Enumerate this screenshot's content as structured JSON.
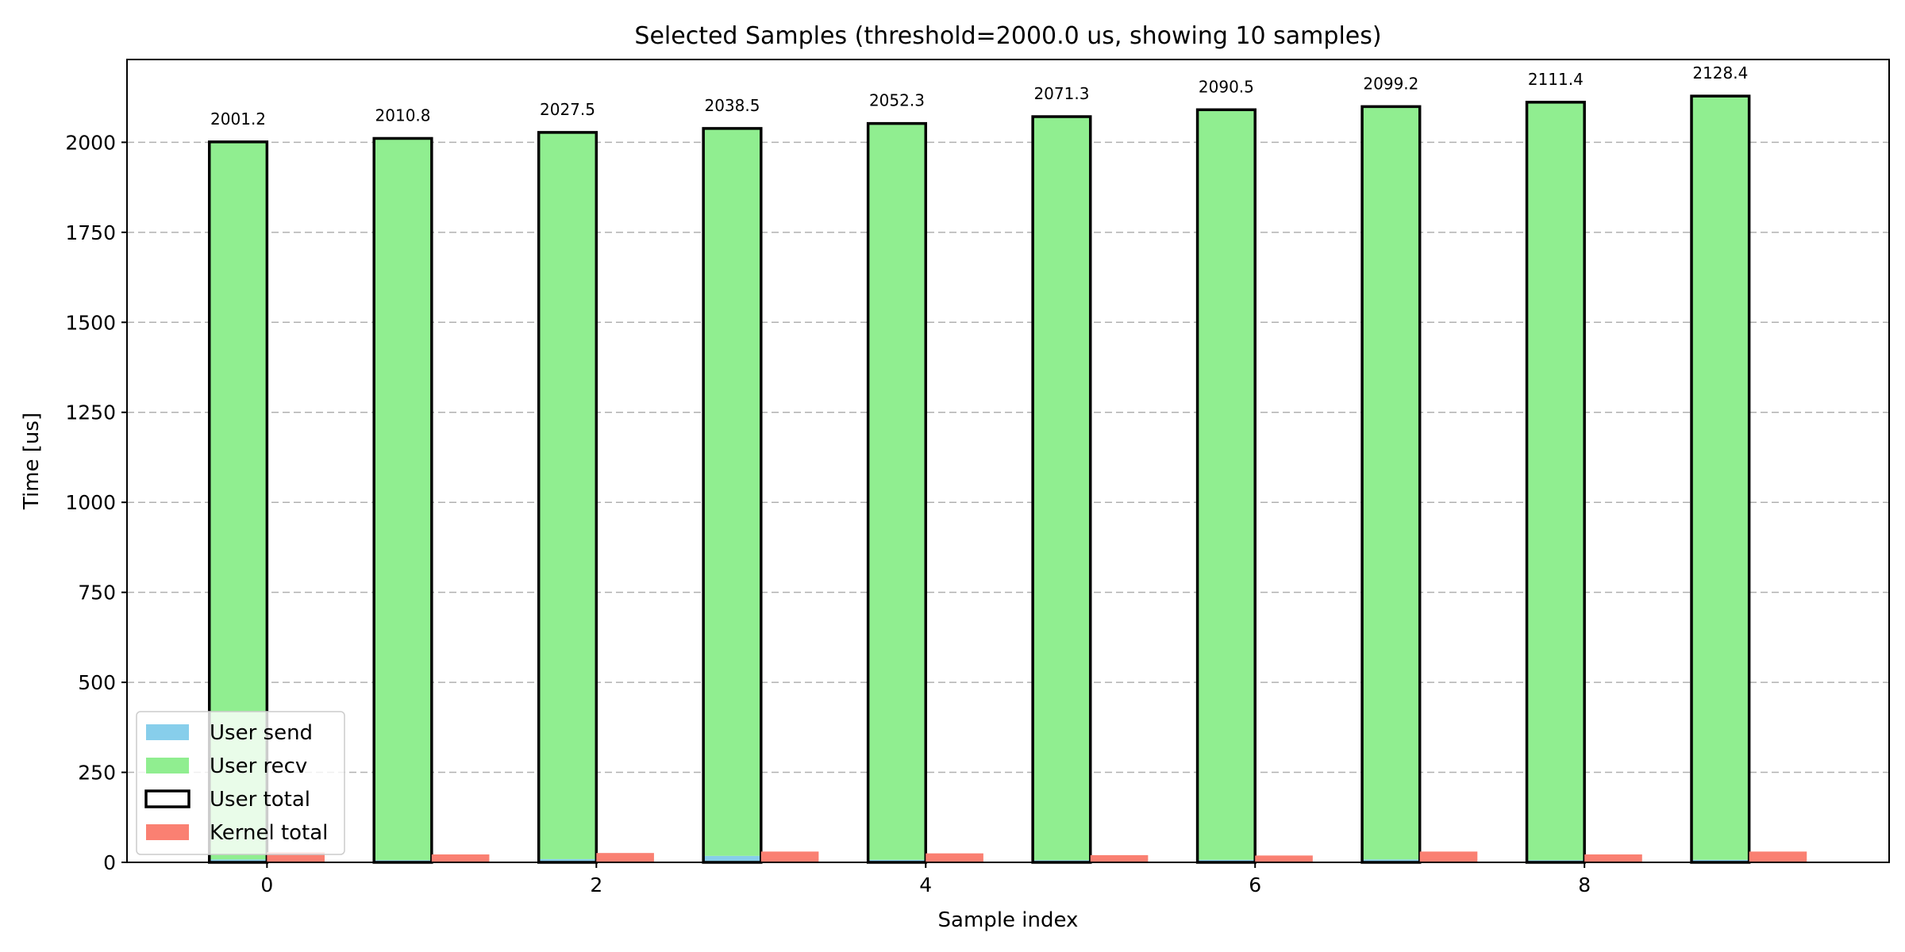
{
  "chart_data": {
    "type": "bar",
    "title": "Selected Samples (threshold=2000.0 us, showing 10 samples)",
    "xlabel": "Sample index",
    "ylabel": "Time [us]",
    "ylim": [
      0,
      2230
    ],
    "xlim": [
      -0.85,
      9.85
    ],
    "grid": "horizontal dashed",
    "legend_position": "lower-left",
    "x": [
      0,
      1,
      2,
      3,
      4,
      5,
      6,
      7,
      8,
      9
    ],
    "xticks": [
      0,
      2,
      4,
      6,
      8
    ],
    "yticks": [
      0,
      250,
      500,
      750,
      1000,
      1250,
      1500,
      1750,
      2000
    ],
    "series": [
      {
        "name": "User send",
        "color": "#87ceeb",
        "values": [
          8,
          6,
          9,
          18,
          7,
          6,
          7,
          8,
          6,
          7
        ]
      },
      {
        "name": "User recv",
        "color": "#90ee90",
        "values": [
          1993.2,
          2004.8,
          2018.5,
          2020.5,
          2045.3,
          2065.3,
          2083.5,
          2091.2,
          2105.4,
          2121.4
        ]
      },
      {
        "name": "User total",
        "color": "#000000",
        "values": [
          2001.2,
          2010.8,
          2027.5,
          2038.5,
          2052.3,
          2071.3,
          2090.5,
          2099.2,
          2111.4,
          2128.4
        ]
      },
      {
        "name": "Kernel total",
        "color": "#fa8072",
        "values": [
          28,
          22,
          26,
          30,
          25,
          20,
          19,
          30,
          22,
          30
        ]
      }
    ],
    "data_labels": [
      "2001.2",
      "2010.8",
      "2027.5",
      "2038.5",
      "2052.3",
      "2071.3",
      "2090.5",
      "2099.2",
      "2111.4",
      "2128.4"
    ]
  }
}
